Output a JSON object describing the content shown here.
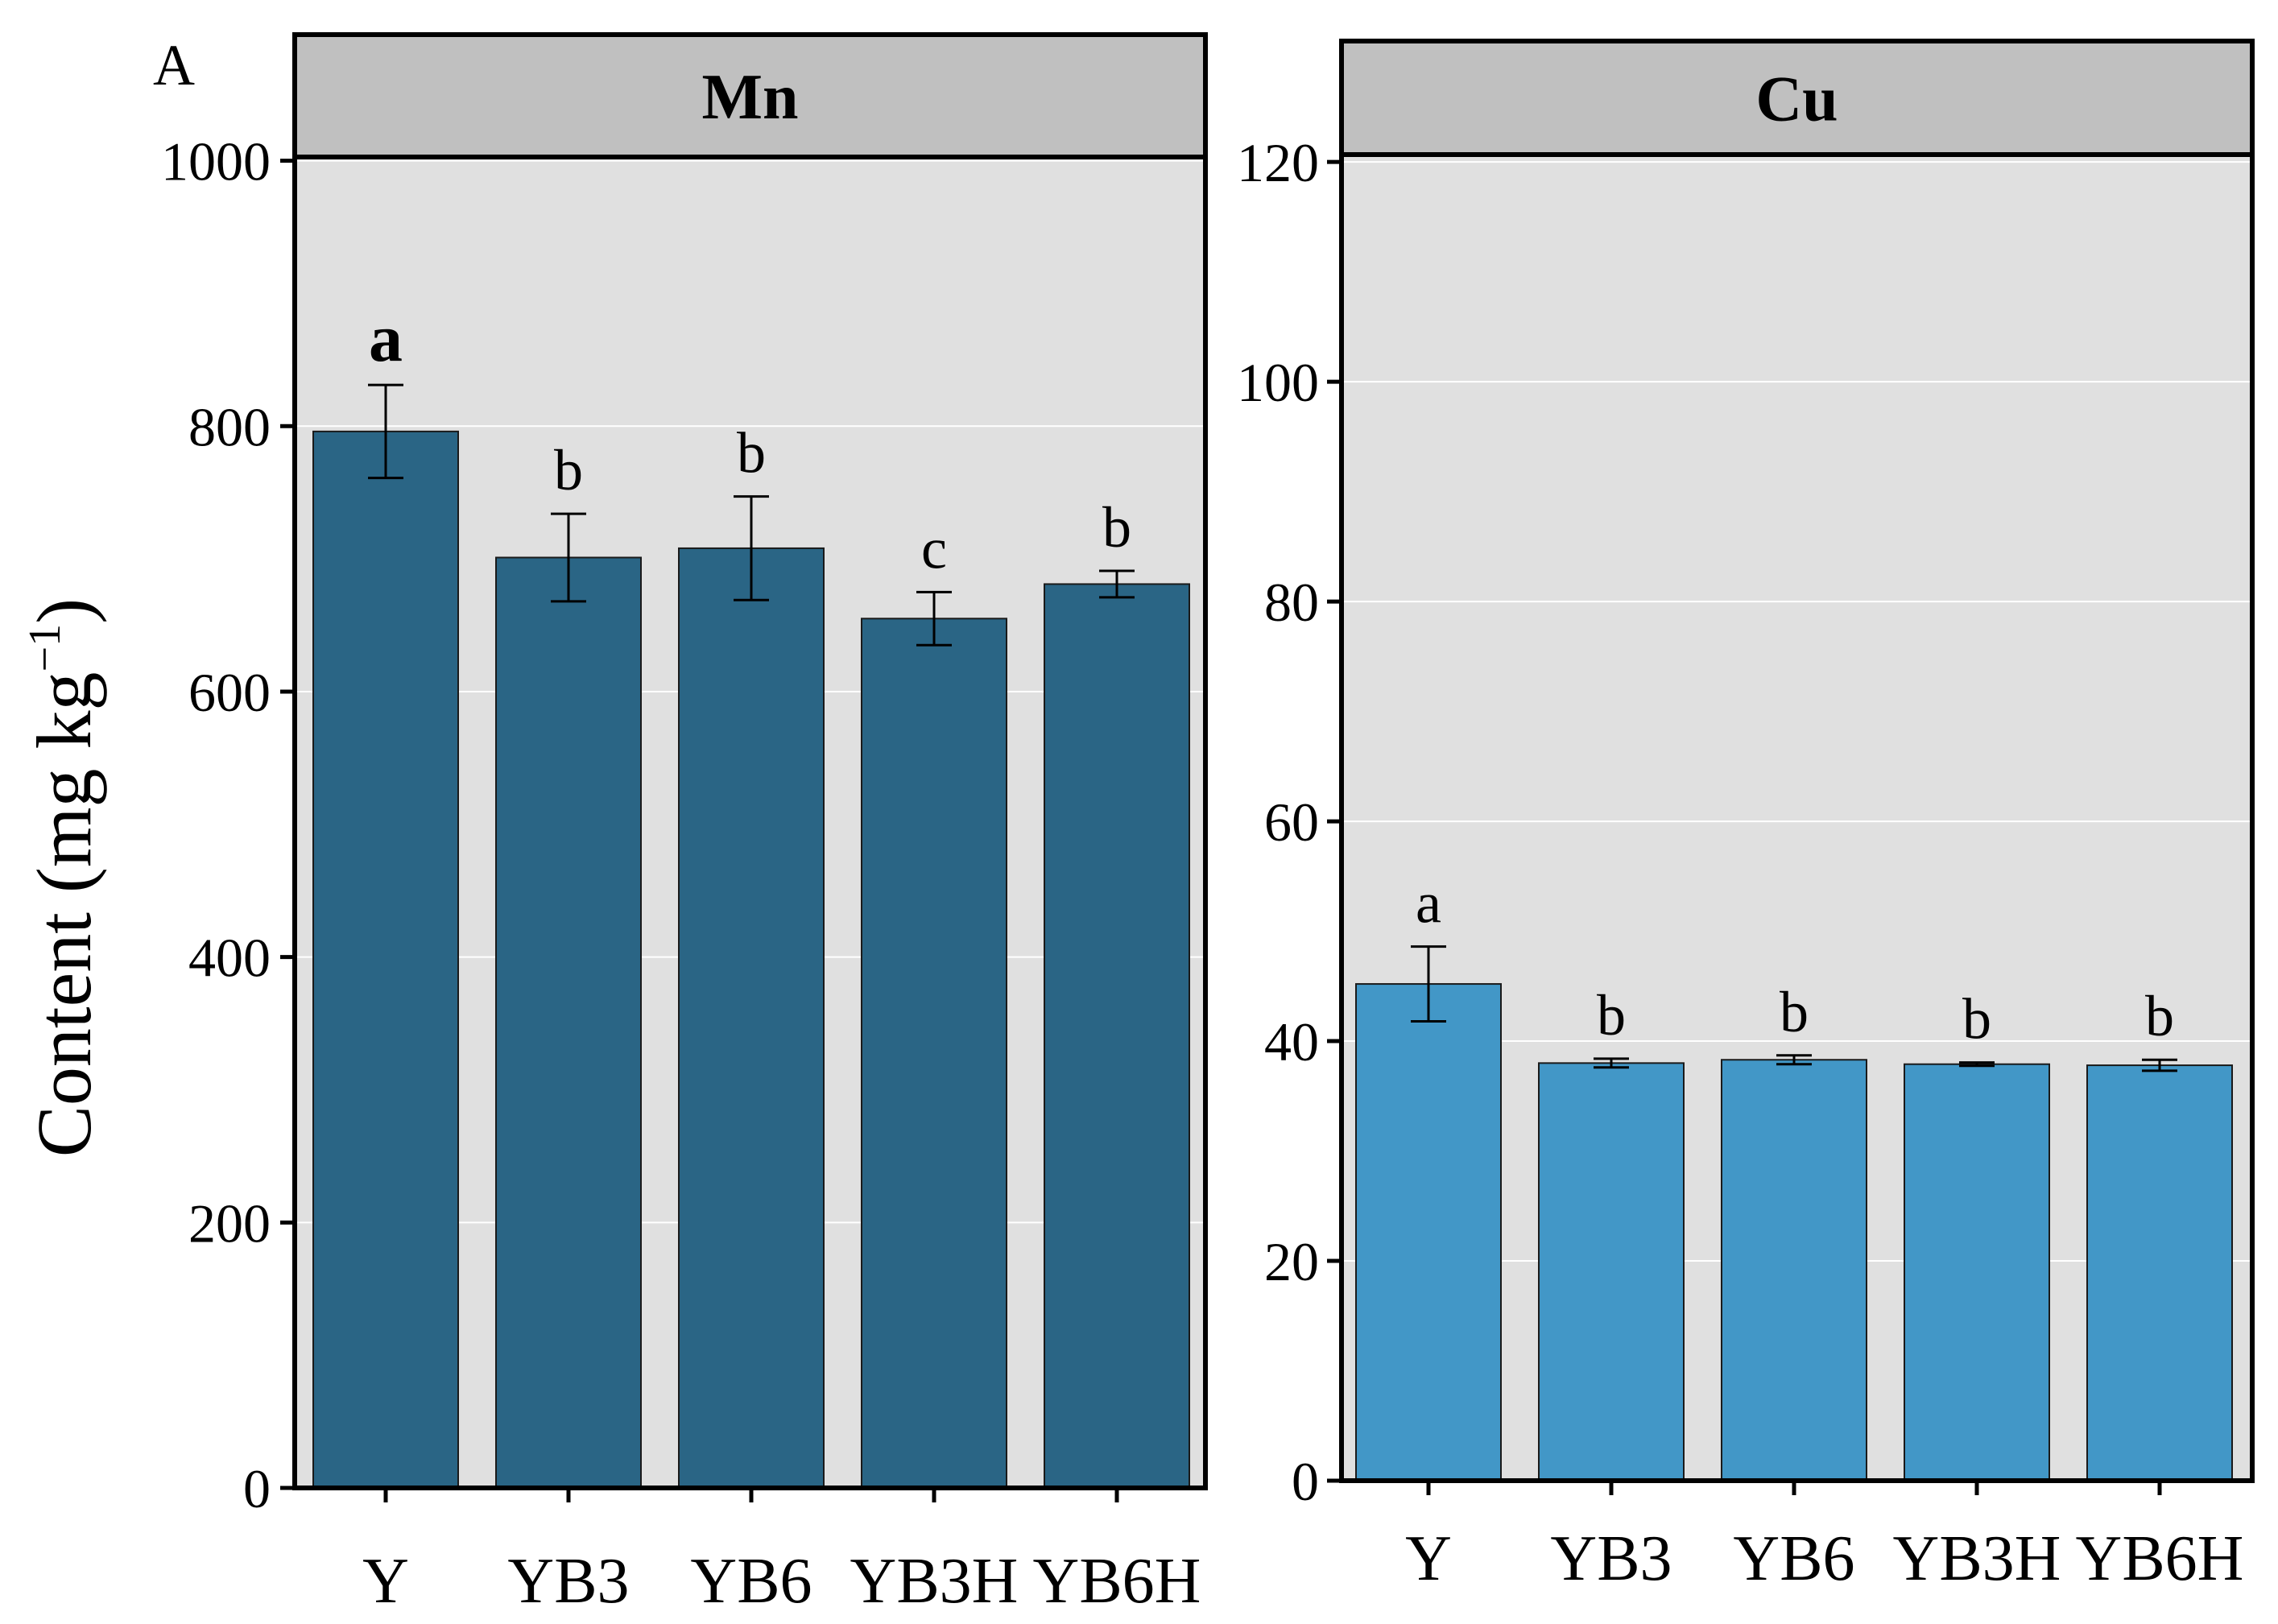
{
  "figure": {
    "panel_tag": "A",
    "ylabel_main": "Content (mg kg",
    "ylabel_sup": "−1",
    "ylabel_close": ")"
  },
  "colors": {
    "mn_bar": "#2a6585",
    "cu_bar": "#4297c7",
    "panel_background": "#e0e0e0",
    "strip_background": "#c0c0c0"
  },
  "chart_data": [
    {
      "type": "bar",
      "title": "Mn",
      "categories": [
        "Y",
        "YB3",
        "YB6",
        "YB3H",
        "YB6H"
      ],
      "values": [
        796,
        701,
        708,
        655,
        681
      ],
      "errors": [
        35,
        33,
        39,
        20,
        10
      ],
      "significance": [
        "a",
        "b",
        "b",
        "c",
        "b"
      ],
      "ylim": [
        0,
        1000
      ],
      "yticks": [
        0,
        200,
        400,
        600,
        800,
        1000
      ],
      "ymax_panel": 1095,
      "xlabel": "",
      "ylabel": "Content (mg kg−1)",
      "grid": true
    },
    {
      "type": "bar",
      "title": "Cu",
      "categories": [
        "Y",
        "YB3",
        "YB6",
        "YB3H",
        "YB6H"
      ],
      "values": [
        45.2,
        38.0,
        38.3,
        37.9,
        37.8
      ],
      "errors": [
        3.4,
        0.4,
        0.4,
        0.15,
        0.5
      ],
      "significance": [
        "a",
        "b",
        "b",
        "b",
        "b"
      ],
      "ylim": [
        0,
        120
      ],
      "yticks": [
        0,
        20,
        40,
        60,
        80,
        100,
        120
      ],
      "ymax_panel": 131,
      "xlabel": "",
      "ylabel": "",
      "grid": true
    }
  ]
}
